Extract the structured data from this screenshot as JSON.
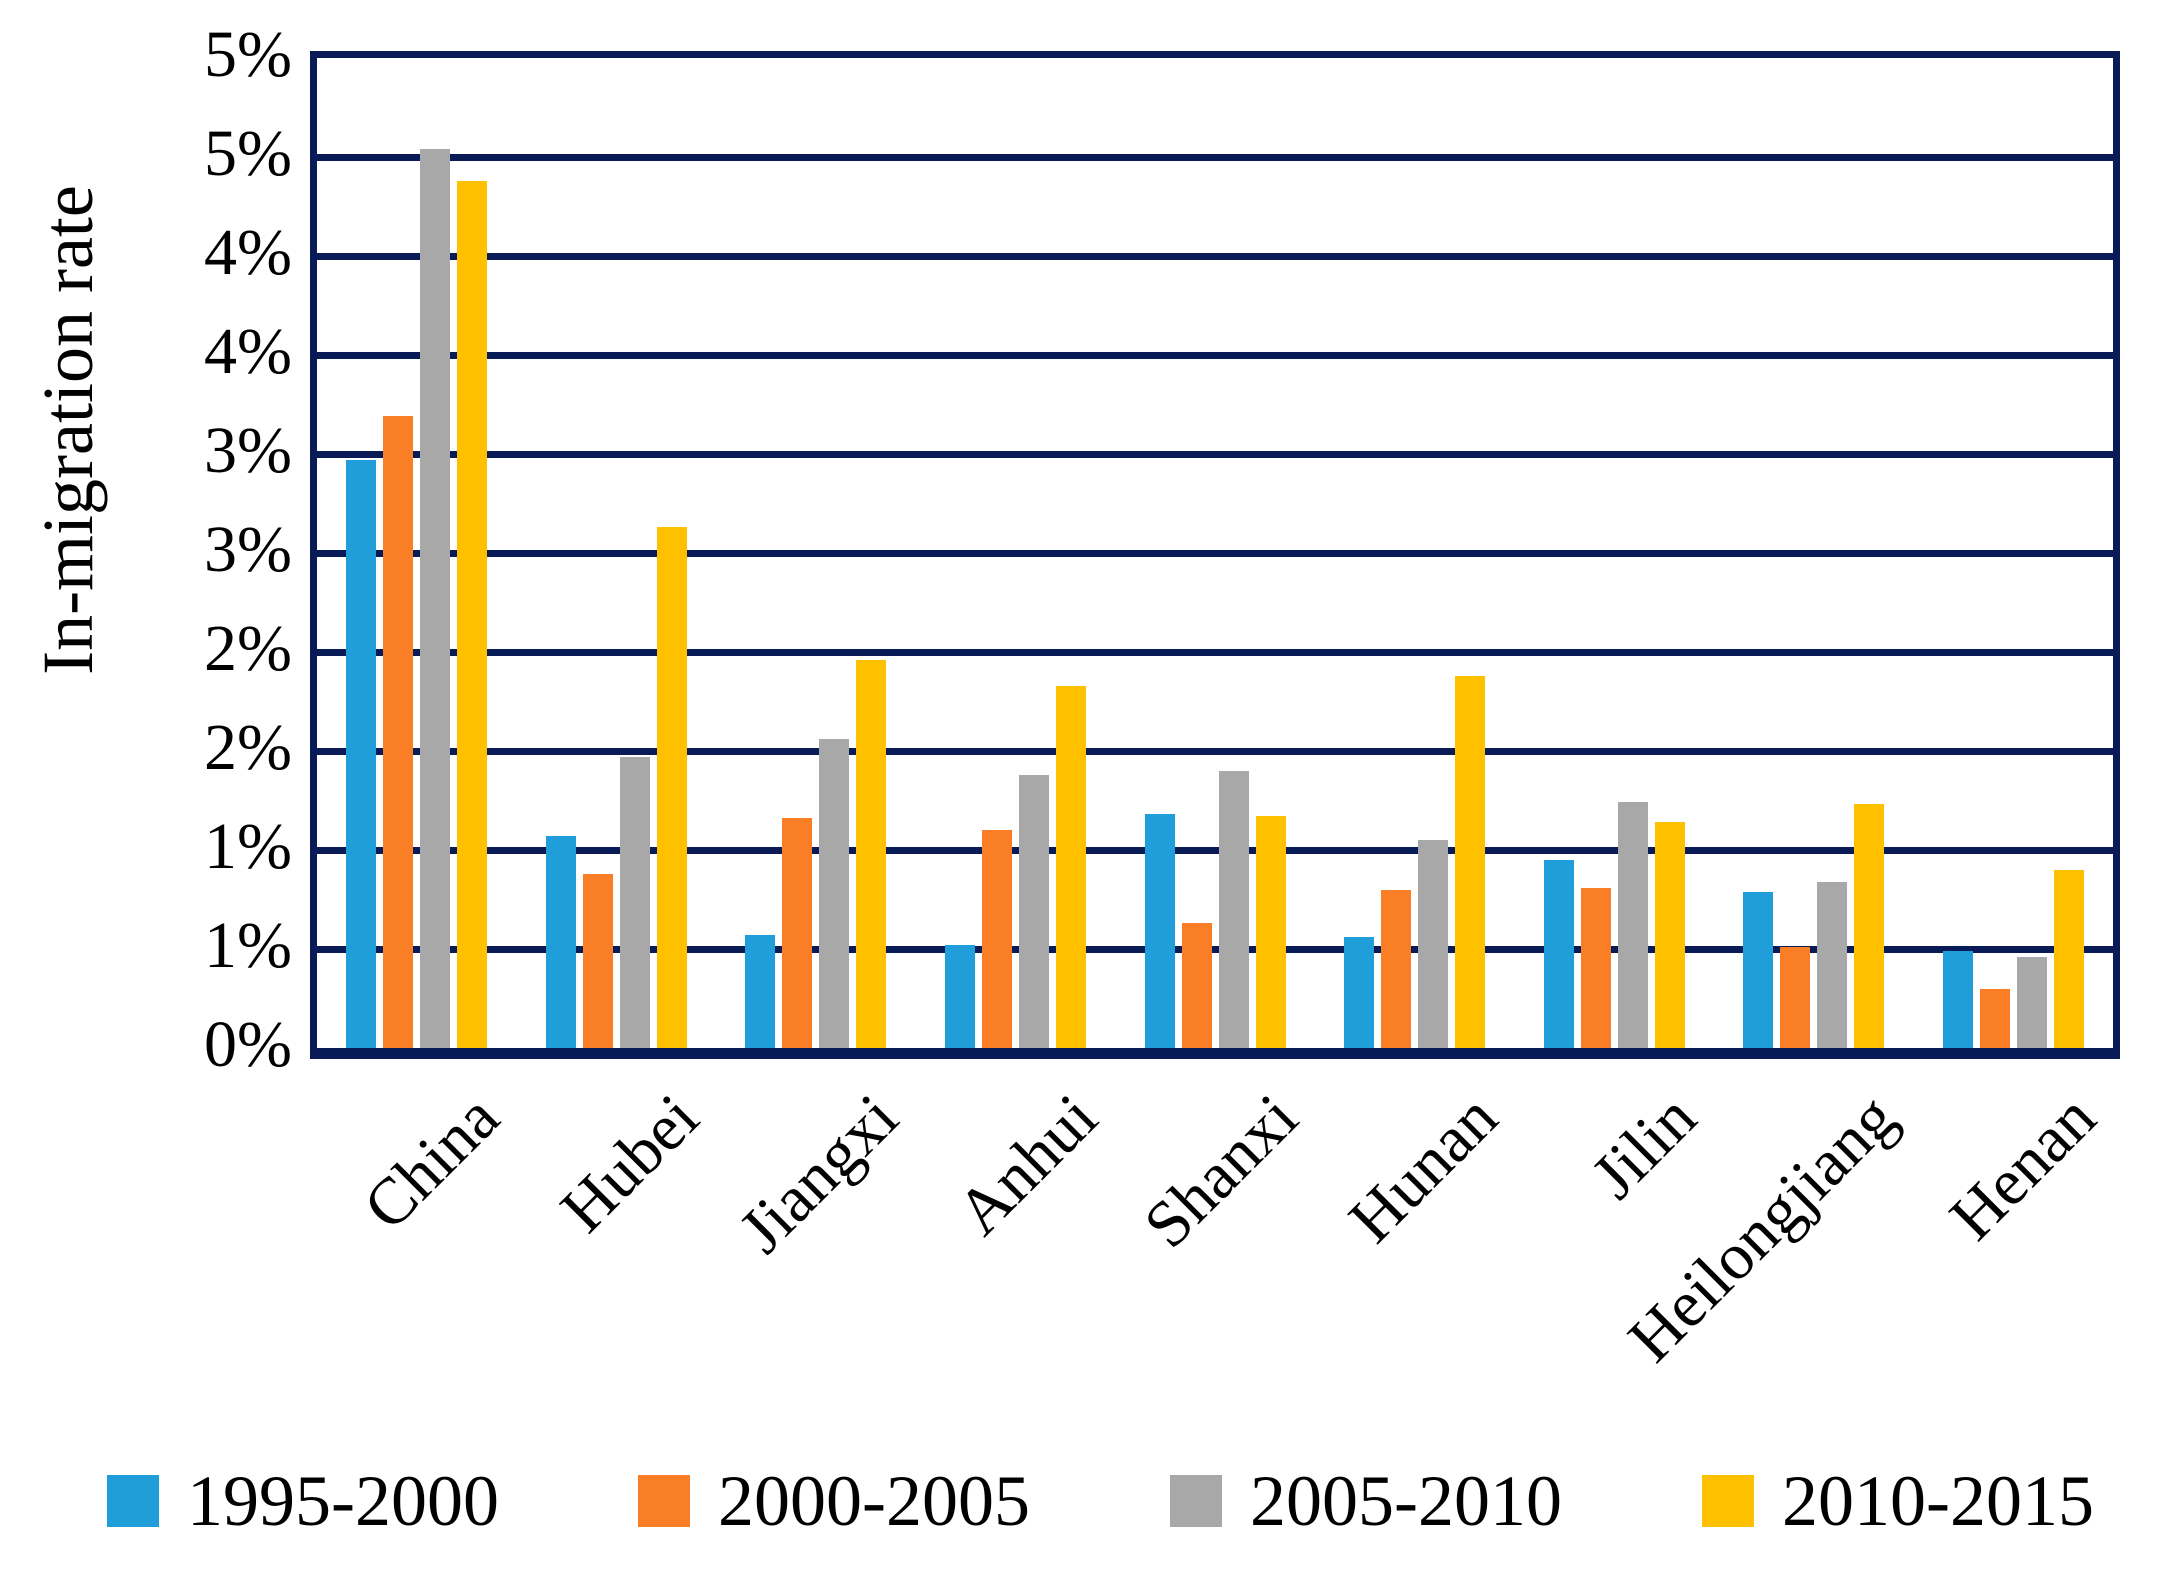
{
  "colors": {
    "axis": "#081B57",
    "background": "#FFFFFF",
    "series_blue": "#1F9ED9",
    "series_orange": "#FA7E26",
    "series_gray": "#A8A8A8",
    "series_yellow": "#FFC000"
  },
  "chart_data": {
    "type": "bar",
    "title": "",
    "xlabel": "",
    "ylabel": "In-migration rate",
    "ylim": [
      0,
      5
    ],
    "y_unit": "%",
    "y_major_step": 0.5,
    "y_tick_labels_top_to_bottom": [
      "5%",
      "5%",
      "4%",
      "4%",
      "3%",
      "3%",
      "2%",
      "2%",
      "1%",
      "1%",
      "0%"
    ],
    "grid": "horizontal",
    "legend_position": "bottom",
    "categories": [
      "China",
      "Hubei",
      "Jiangxi",
      "Anhui",
      "Shanxi",
      "Hunan",
      "Jilin",
      "Heilongjiang",
      "Henan"
    ],
    "series": [
      {
        "name": "1995-2000",
        "color": "#1F9ED9",
        "values": [
          2.97,
          1.07,
          0.57,
          0.52,
          1.18,
          0.56,
          0.95,
          0.79,
          0.49
        ]
      },
      {
        "name": "2000-2005",
        "color": "#FA7E26",
        "values": [
          3.19,
          0.88,
          1.16,
          1.1,
          0.63,
          0.8,
          0.81,
          0.51,
          0.3
        ]
      },
      {
        "name": "2005-2010",
        "color": "#A8A8A8",
        "values": [
          4.54,
          1.47,
          1.56,
          1.38,
          1.4,
          1.05,
          1.24,
          0.84,
          0.46
        ]
      },
      {
        "name": "2010-2015",
        "color": "#FFC000",
        "values": [
          4.38,
          2.63,
          1.96,
          1.83,
          1.17,
          1.88,
          1.14,
          1.23,
          0.9
        ]
      }
    ]
  }
}
